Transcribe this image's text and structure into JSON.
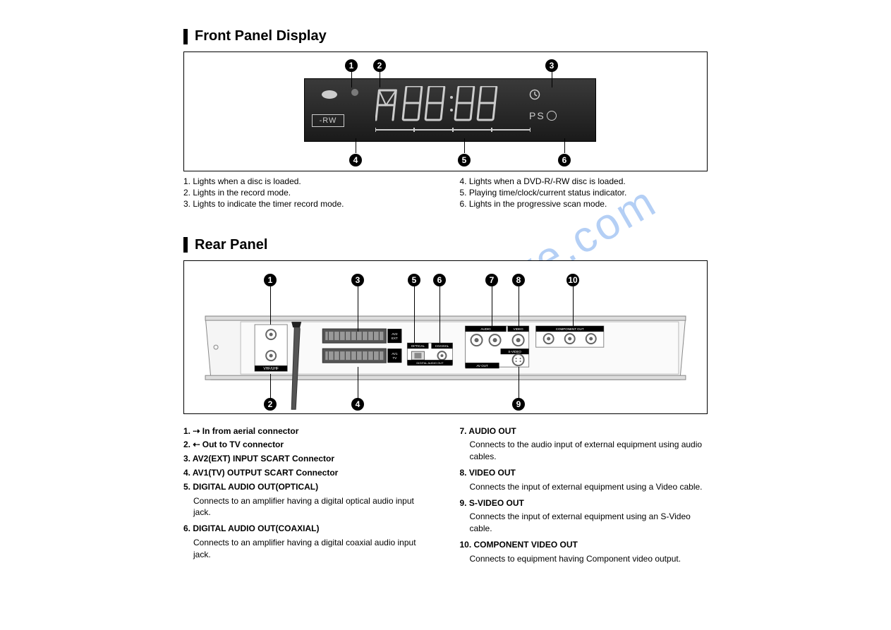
{
  "watermark": "manualshive.com",
  "front": {
    "title": "Front Panel Display",
    "rw_label": "-RW",
    "ps_label": "PS",
    "callouts": {
      "1": "1",
      "2": "2",
      "3": "3",
      "4": "4",
      "5": "5",
      "6": "6"
    },
    "notes_left": [
      "1. Lights when a disc is loaded.",
      "2. Lights in the record mode.",
      "3. Lights to indicate the timer record mode."
    ],
    "notes_right": [
      "4. Lights when a DVD-R/-RW disc is loaded.",
      "5. Playing time/clock/current status indicator.",
      "6. Lights in the progressive scan mode."
    ],
    "colors": {
      "panel_border": "#000000",
      "display_bg_top": "#3a3a3a",
      "display_bg_bot": "#1a1a1a",
      "segment": "#cccccc",
      "callout_bg": "#000000",
      "callout_fg": "#ffffff"
    }
  },
  "rear": {
    "title": "Rear Panel",
    "callouts": {
      "1": "1",
      "2": "2",
      "3": "3",
      "4": "4",
      "5": "5",
      "6": "6",
      "7": "7",
      "8": "8",
      "9": "9",
      "10": "10"
    },
    "labels": {
      "vhf_uhf": "VHF/UHF",
      "ant_in": "ANT IN",
      "ant_out": "ANT OUT",
      "optical": "OPTICAL",
      "coaxial": "COAXIAL",
      "digital_audio_out": "DIGITAL AUDIO OUT",
      "audio": "AUDIO",
      "video": "VIDEO",
      "svideo": "S-VIDEO",
      "av_out": "AV OUT",
      "component_out": "COMPONENT OUT"
    },
    "desc_left": [
      {
        "t": "1. ⇢ In from aerial connector",
        "b": true
      },
      {
        "t": "2. ⇠ Out to TV connector",
        "b": true
      },
      {
        "t": "3. AV2(EXT) INPUT SCART Connector",
        "b": true
      },
      {
        "t": "4. AV1(TV) OUTPUT SCART Connector",
        "b": true
      },
      {
        "t": "5. DIGITAL AUDIO OUT(OPTICAL)",
        "b": true
      },
      {
        "t": "Connects to an amplifier having a digital optical audio input jack.",
        "b": false,
        "sub": true
      },
      {
        "t": "6. DIGITAL AUDIO OUT(COAXIAL)",
        "b": true
      },
      {
        "t": "Connects to an amplifier having a digital coaxial audio input jack.",
        "b": false,
        "sub": true
      }
    ],
    "desc_right": [
      {
        "t": "7. AUDIO OUT",
        "b": true
      },
      {
        "t": "Connects to the audio input of external equipment using  audio cables.",
        "b": false,
        "sub": true
      },
      {
        "t": "8. VIDEO OUT",
        "b": true
      },
      {
        "t": "Connects the input of external equipment using a Video cable.",
        "b": false,
        "sub": true
      },
      {
        "t": "9. S-VIDEO OUT",
        "b": true
      },
      {
        "t": "Connects the input of external equipment using an S-Video cable.",
        "b": false,
        "sub": true
      },
      {
        "t": "10. COMPONENT VIDEO OUT",
        "b": true
      },
      {
        "t": "Connects to equipment having Component video output.",
        "b": false,
        "sub": true
      }
    ],
    "colors": {
      "chassis": "#f0f0f0",
      "chassis_stroke": "#888888",
      "scart": "#555555",
      "label_bg": "#000000",
      "label_fg": "#ffffff",
      "rca_outer": "#888888",
      "rca_inner": "#ffffff"
    }
  }
}
